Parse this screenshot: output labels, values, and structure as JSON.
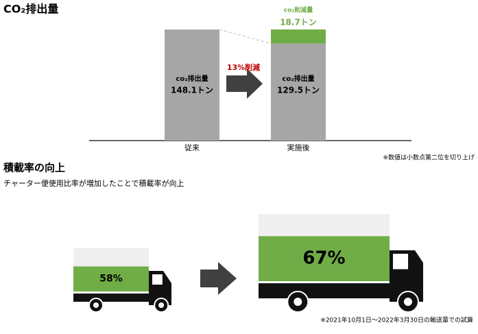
{
  "chart_data": {
    "type": "stacked-bar",
    "title": "CO₂排出量",
    "categories": [
      "従来",
      "実施後"
    ],
    "series": [
      {
        "name": "co₂排出量",
        "color": "#a6a6a6",
        "values": [
          148.1,
          129.5
        ],
        "value_labels": [
          "148.1トン",
          "129.5トン"
        ]
      },
      {
        "name": "co₂削減量",
        "color": "#70ad47",
        "values": [
          null,
          18.7
        ],
        "value_labels": [
          null,
          "18.7トン"
        ]
      }
    ],
    "ylim": [
      0,
      150
    ],
    "annotation": "13%削減",
    "footnote": "※数値は小数点第二位を切り上げ"
  },
  "load": {
    "title": "積載率の向上",
    "subtitle": "チャーター便使用比率が増加したことで積載率が向上",
    "values": [
      58,
      67
    ],
    "value_labels": [
      "58%",
      "67%"
    ],
    "footnote": "※2021年10月1日～2022年3月30日の輸送量での試算"
  }
}
